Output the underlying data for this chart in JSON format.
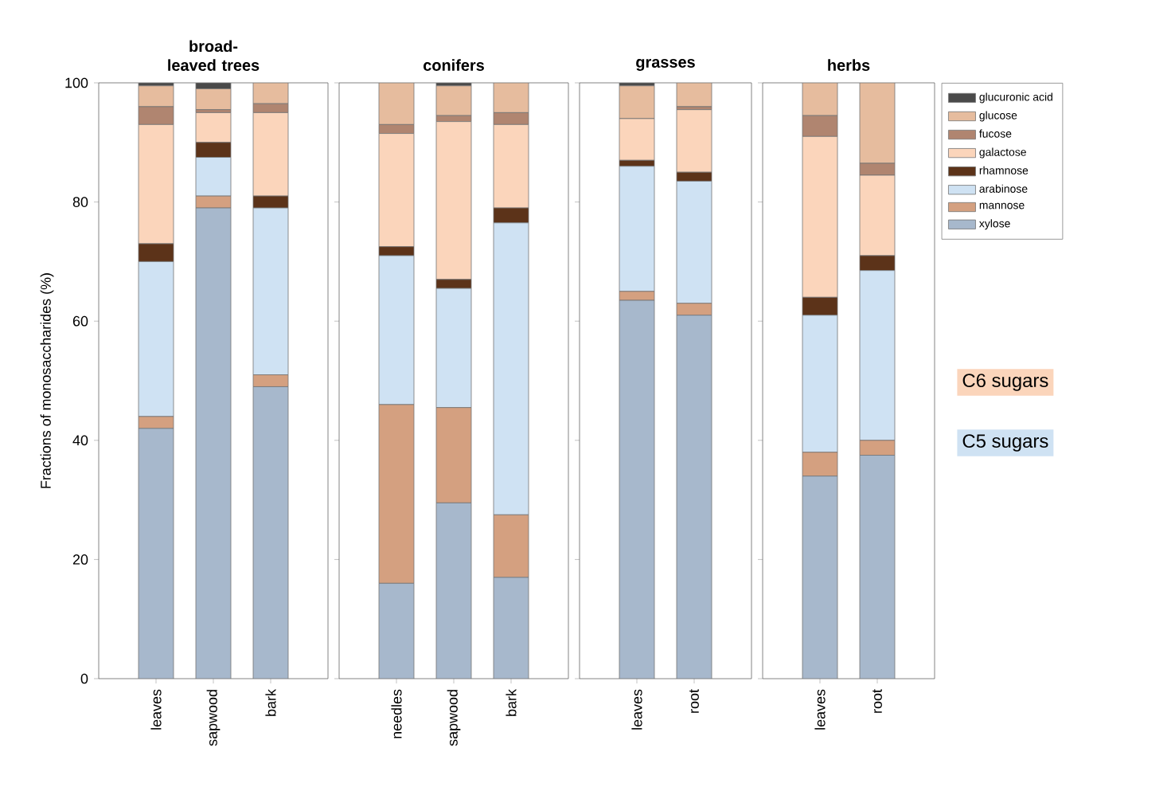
{
  "chart_data": [
    {
      "type": "bar",
      "title": "broad-leaved trees",
      "ylabel": "Fractions of monosaccharides (%)",
      "stacked": true,
      "categories": [
        "leaves",
        "sapwood",
        "bark"
      ],
      "ylim": [
        0,
        100
      ],
      "yticks": [
        0,
        20,
        40,
        60,
        80,
        100
      ],
      "series": [
        {
          "color": "#a7b8cc",
          "values": [
            42,
            79,
            49
          ]
        },
        {
          "color": "#d4a080",
          "values": [
            2,
            2,
            2
          ]
        },
        {
          "color": "#cfe2f3",
          "values": [
            26,
            6.5,
            28
          ]
        },
        {
          "color": "#5c3319",
          "values": [
            3,
            2.5,
            2
          ]
        },
        {
          "color": "#fbd5bb",
          "values": [
            20,
            5,
            14
          ]
        },
        {
          "color": "#b08570",
          "values": [
            3,
            0.5,
            1.5
          ]
        },
        {
          "color": "#e6bc9e",
          "values": [
            3.5,
            3.5,
            3.5
          ]
        },
        {
          "color": "#4a4a4a",
          "values": [
            0.5,
            1,
            0
          ]
        }
      ]
    },
    {
      "type": "bar",
      "title": "conifers",
      "stacked": true,
      "categories": [
        "needles",
        "sapwood",
        "bark"
      ],
      "ylim": [
        0,
        100
      ],
      "yticks": [
        0,
        20,
        40,
        60,
        80,
        100
      ],
      "tick_labels": "x",
      "series": [
        {
          "color": "#a7b8cc",
          "values": [
            16,
            29.5,
            17
          ]
        },
        {
          "color": "#d4a080",
          "values": [
            30,
            16,
            10.5
          ]
        },
        {
          "color": "#cfe2f3",
          "values": [
            25,
            20,
            49
          ]
        },
        {
          "color": "#5c3319",
          "values": [
            1.5,
            1.5,
            2.5
          ]
        },
        {
          "color": "#fbd5bb",
          "values": [
            19,
            26.5,
            14
          ]
        },
        {
          "color": "#b08570",
          "values": [
            1.5,
            1,
            2
          ]
        },
        {
          "color": "#e6bc9e",
          "values": [
            7,
            5,
            5
          ]
        },
        {
          "color": "#4a4a4a",
          "values": [
            0,
            0.5,
            0
          ]
        }
      ]
    },
    {
      "type": "bar",
      "title": "grasses",
      "stacked": true,
      "categories": [
        "leaves",
        "root"
      ],
      "ylim": [
        0,
        100
      ],
      "yticks": [
        0,
        20,
        40,
        60,
        80,
        100
      ],
      "tick_labels": "x",
      "series": [
        {
          "color": "#a7b8cc",
          "values": [
            63.5,
            61
          ]
        },
        {
          "color": "#d4a080",
          "values": [
            1.5,
            2
          ]
        },
        {
          "color": "#cfe2f3",
          "values": [
            21,
            20.5
          ]
        },
        {
          "color": "#5c3319",
          "values": [
            1,
            1.5
          ]
        },
        {
          "color": "#fbd5bb",
          "values": [
            7,
            10.5
          ]
        },
        {
          "color": "#b08570",
          "values": [
            0,
            0.5
          ]
        },
        {
          "color": "#e6bc9e",
          "values": [
            5.5,
            4
          ]
        },
        {
          "color": "#4a4a4a",
          "values": [
            0.5,
            0
          ]
        }
      ]
    },
    {
      "type": "bar",
      "title": "herbs",
      "stacked": true,
      "categories": [
        "leaves",
        "root"
      ],
      "ylim": [
        0,
        100
      ],
      "yticks": [
        0,
        20,
        40,
        60,
        80,
        100
      ],
      "tick_labels": "x",
      "legend": "right",
      "annotations": [
        "C6 sugars",
        "C5 sugars"
      ],
      "series": [
        {
          "name": "xylose",
          "color": "#a7b8cc",
          "values": [
            34,
            37.5
          ]
        },
        {
          "name": "mannose",
          "color": "#d4a080",
          "values": [
            4,
            2.5
          ]
        },
        {
          "name": "arabinose",
          "color": "#cfe2f3",
          "values": [
            23,
            28.5
          ]
        },
        {
          "name": "rhamnose",
          "color": "#5c3319",
          "values": [
            3,
            2.5
          ]
        },
        {
          "name": "galactose",
          "color": "#fbd5bb",
          "values": [
            27,
            13.5
          ]
        },
        {
          "name": "fucose",
          "color": "#b08570",
          "values": [
            3.5,
            2
          ]
        },
        {
          "name": "glucose",
          "color": "#e6bc9e",
          "values": [
            5.5,
            13.5
          ]
        },
        {
          "name": "glucuronic acid",
          "color": "#4a4a4a",
          "values": [
            0,
            0
          ]
        }
      ]
    }
  ]
}
